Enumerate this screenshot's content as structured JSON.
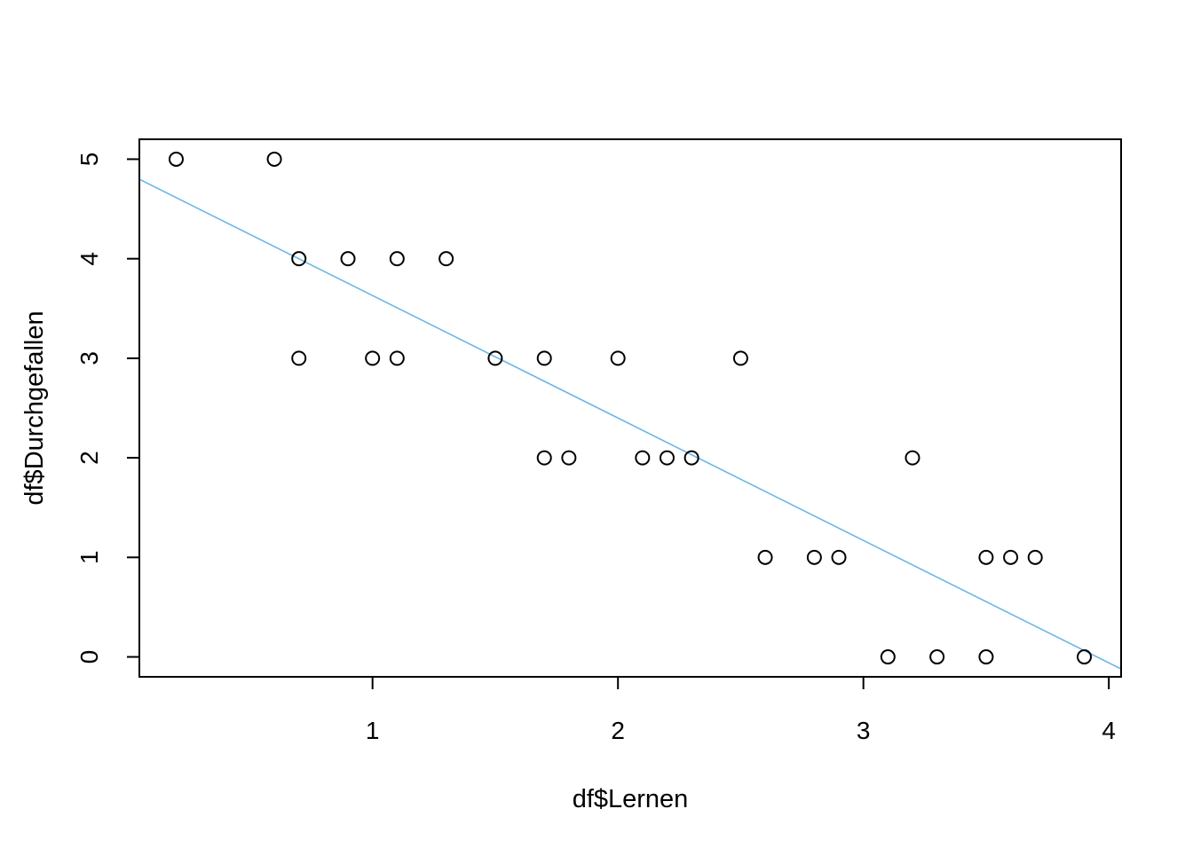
{
  "chart_data": {
    "type": "scatter",
    "xlabel": "df$Lernen",
    "ylabel": "df$Durchgefallen",
    "xlim": [
      0.05,
      4.05
    ],
    "ylim": [
      -0.2,
      5.2
    ],
    "x_ticks": [
      1,
      2,
      3,
      4
    ],
    "y_ticks": [
      0,
      1,
      2,
      3,
      4,
      5
    ],
    "x_tick_labels": [
      "1",
      "2",
      "3",
      "4"
    ],
    "y_tick_labels": [
      "0",
      "1",
      "2",
      "3",
      "4",
      "5"
    ],
    "grid": false,
    "points": [
      {
        "x": 0.2,
        "y": 5
      },
      {
        "x": 0.6,
        "y": 5
      },
      {
        "x": 0.7,
        "y": 4
      },
      {
        "x": 0.9,
        "y": 4
      },
      {
        "x": 1.1,
        "y": 4
      },
      {
        "x": 1.3,
        "y": 4
      },
      {
        "x": 0.7,
        "y": 3
      },
      {
        "x": 1.0,
        "y": 3
      },
      {
        "x": 1.1,
        "y": 3
      },
      {
        "x": 1.5,
        "y": 3
      },
      {
        "x": 1.7,
        "y": 3
      },
      {
        "x": 2.0,
        "y": 3
      },
      {
        "x": 2.5,
        "y": 3
      },
      {
        "x": 1.7,
        "y": 2
      },
      {
        "x": 1.8,
        "y": 2
      },
      {
        "x": 2.1,
        "y": 2
      },
      {
        "x": 2.2,
        "y": 2
      },
      {
        "x": 2.3,
        "y": 2
      },
      {
        "x": 3.2,
        "y": 2
      },
      {
        "x": 2.6,
        "y": 1
      },
      {
        "x": 2.8,
        "y": 1
      },
      {
        "x": 2.9,
        "y": 1
      },
      {
        "x": 3.5,
        "y": 1
      },
      {
        "x": 3.6,
        "y": 1
      },
      {
        "x": 3.7,
        "y": 1
      },
      {
        "x": 3.1,
        "y": 0
      },
      {
        "x": 3.3,
        "y": 0
      },
      {
        "x": 3.5,
        "y": 0
      },
      {
        "x": 3.9,
        "y": 0
      }
    ],
    "regression_line": {
      "intercept": 4.86,
      "slope": -1.23,
      "color": "#6cb6e6"
    },
    "point_color": "#000000"
  }
}
